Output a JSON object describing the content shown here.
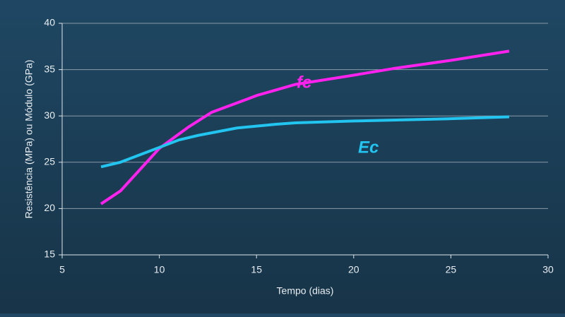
{
  "chart_data": {
    "type": "line",
    "x_label": "Tempo (dias)",
    "y_label": "Resistência (MPa) ou Módulo (GPa)",
    "xlim": [
      5,
      30
    ],
    "xticks": [
      5,
      10,
      15,
      20,
      25,
      30
    ],
    "ylim": [
      15,
      40
    ],
    "yticks": [
      15,
      20,
      25,
      30,
      35,
      40
    ],
    "grid": true,
    "series": [
      {
        "name": "fc",
        "color": "#ff22ee",
        "x": [
          7,
          8,
          10,
          11.5,
          12.7,
          14.5,
          15,
          17,
          20,
          22,
          25,
          28
        ],
        "values": [
          20.5,
          21.9,
          26.5,
          28.8,
          30.4,
          31.8,
          32.2,
          33.4,
          34.4,
          35.1,
          36.0,
          37.0
        ]
      },
      {
        "name": "Ec",
        "color": "#22c4f0",
        "x": [
          7,
          8,
          9,
          10,
          11,
          12,
          13,
          14,
          15,
          16,
          17,
          20,
          25,
          28
        ],
        "values": [
          24.5,
          25.0,
          25.8,
          26.6,
          27.4,
          27.9,
          28.3,
          28.7,
          28.9,
          29.1,
          29.25,
          29.45,
          29.7,
          29.9
        ]
      }
    ]
  }
}
